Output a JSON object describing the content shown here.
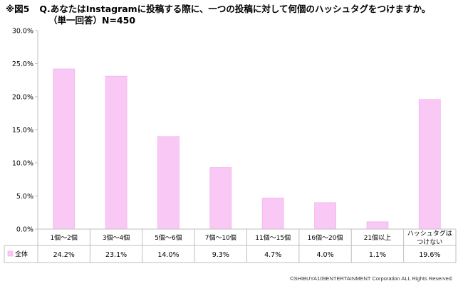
{
  "header": {
    "figure_label": "※図5",
    "question": "Q.あなたはInstagramに投稿する際に、一つの投稿に対して何個のハッシュタグをつけますか。",
    "subtitle": "（単一回答）N=450"
  },
  "footer": {
    "copyright": "©SHIBUYA109ENTERTAINMENT Corporation   ALL Rights Reserved."
  },
  "colors": {
    "bar": "#f9c8f4",
    "bar_stroke": "#f3b6ee",
    "grid": "#bfbfbf"
  },
  "chart_data": {
    "type": "bar",
    "title": "Q.あなたはInstagramに投稿する際に、一つの投稿に対して何個のハッシュタグをつけますか。",
    "subtitle": "（単一回答）N=450",
    "categories": [
      "1個～2個",
      "3個～4個",
      "5個～6個",
      "7個～10個",
      "11個～15個",
      "16個～20個",
      "21個以上",
      "ハッシュタグは\nつけない"
    ],
    "series": [
      {
        "name": "全体",
        "values": [
          24.2,
          23.1,
          14.0,
          9.3,
          4.7,
          4.0,
          1.1,
          19.6
        ],
        "labels": [
          "24.2%",
          "23.1%",
          "14.0%",
          "9.3%",
          "4.7%",
          "4.0%",
          "1.1%",
          "19.6%"
        ]
      }
    ],
    "ylim": [
      0,
      30
    ],
    "yticks": [
      0,
      5,
      10,
      15,
      20,
      25,
      30
    ],
    "ytick_labels": [
      "0.0%",
      "5.0%",
      "10.0%",
      "15.0%",
      "20.0%",
      "25.0%",
      "30.0%"
    ],
    "grid": false,
    "legend": "data-table-left"
  }
}
